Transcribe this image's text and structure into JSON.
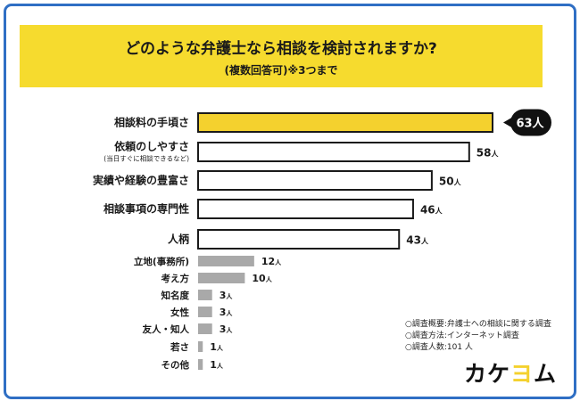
{
  "header": {
    "title": "どのような弁護士なら相談を検討されますか?",
    "subtitle": "(複数回答可)※3つまで"
  },
  "chart_data": {
    "type": "bar",
    "orientation": "horizontal",
    "title": "どのような弁護士なら相談を検討されますか?",
    "subtitle": "(複数回答可)※3つまで",
    "categories": [
      "相談料の手頃さ",
      "依頼のしやすさ",
      "実績や経験の豊富さ",
      "相談事項の専門性",
      "人柄",
      "立地(事務所)",
      "考え方",
      "知名度",
      "女性",
      "友人・知人",
      "若さ",
      "その他"
    ],
    "category_notes": [
      "",
      "(当日すぐに相談できるなど)",
      "",
      "",
      "",
      "",
      "",
      "",
      "",
      "",
      "",
      ""
    ],
    "values": [
      63,
      58,
      50,
      46,
      43,
      12,
      10,
      3,
      3,
      3,
      1,
      1
    ],
    "value_unit": "人",
    "highlight": {
      "index": 0,
      "color": "#f4d12e",
      "callout": "63人"
    },
    "colors": {
      "highlight": "#f4d12e",
      "outlined": "#ffffff",
      "minor": "#a9a9a9",
      "stroke": "#1a1a1a"
    }
  },
  "notes": [
    "○調査概要:弁護士への相談に関する調査",
    "○調査方法:インターネット調査",
    "○調査人数:101 人"
  ],
  "brand": {
    "text": "カケヨム",
    "color": "#f4d12e"
  }
}
